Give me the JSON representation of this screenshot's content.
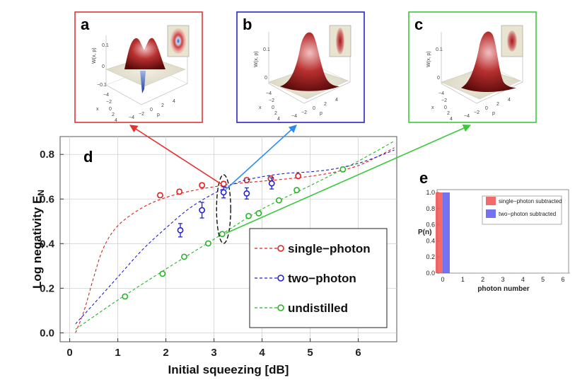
{
  "panels": {
    "a": {
      "label": "a",
      "zlabel": "W(x, p)",
      "xlabel": "x",
      "plabel": "p",
      "zticks": [
        "0.1",
        "0",
        "−0.1"
      ],
      "xticks": [
        "−4",
        "−2",
        "0",
        "2",
        "4"
      ],
      "pticks": [
        "−4",
        "−2",
        "0",
        "2",
        "4"
      ],
      "color": "#e63232"
    },
    "b": {
      "label": "b",
      "zlabel": "W(x, p)",
      "xlabel": "x",
      "plabel": "p",
      "zticks": [
        "0.1",
        "0"
      ],
      "xticks": [
        "−4",
        "−2",
        "0",
        "2",
        "4"
      ],
      "pticks": [
        "−4",
        "−2",
        "0",
        "2",
        "4"
      ],
      "color": "#2424c8"
    },
    "c": {
      "label": "c",
      "zlabel": "W(x, p)",
      "xlabel": "x",
      "plabel": "p",
      "zticks": [
        "0.1",
        "0"
      ],
      "xticks": [
        "−4",
        "−2",
        "0",
        "2",
        "4"
      ],
      "pticks": [
        "−4",
        "−2",
        "0",
        "2",
        "4"
      ],
      "color": "#3cc83c"
    }
  },
  "chart_data": [
    {
      "type": "scatter",
      "panel": "d",
      "xlabel": "Initial squeezing [dB]",
      "ylabel": "Log negativity E",
      "ylabel_sub": "N",
      "xlim": [
        -0.2,
        6.8
      ],
      "ylim": [
        -0.04,
        0.88
      ],
      "xticks": [
        0,
        1,
        2,
        3,
        4,
        5,
        6
      ],
      "yticks": [
        0.0,
        0.2,
        0.4,
        0.6,
        0.8
      ],
      "grid": true,
      "legend_position": "lower-right",
      "series": [
        {
          "name": "single−photon",
          "color": "#e02020",
          "points": [
            [
              1.88,
              0.617
            ],
            [
              2.28,
              0.633
            ],
            [
              2.75,
              0.662
            ],
            [
              3.2,
              0.668
            ],
            [
              3.68,
              0.685
            ],
            [
              4.18,
              0.692
            ],
            [
              4.75,
              0.703
            ]
          ],
          "errors": [
            0.01,
            0.01,
            0.01,
            0.01,
            0.01,
            0.01,
            0.01
          ],
          "theory": [
            [
              0.12,
              0.0
            ],
            [
              0.3,
              0.1
            ],
            [
              0.5,
              0.25
            ],
            [
              0.7,
              0.38
            ],
            [
              1.0,
              0.48
            ],
            [
              1.5,
              0.56
            ],
            [
              2.0,
              0.607
            ],
            [
              2.5,
              0.635
            ],
            [
              3.0,
              0.655
            ],
            [
              3.5,
              0.67
            ],
            [
              4.0,
              0.68
            ],
            [
              4.5,
              0.69
            ],
            [
              5.0,
              0.702
            ],
            [
              5.5,
              0.72
            ],
            [
              6.0,
              0.75
            ],
            [
              6.4,
              0.79
            ],
            [
              6.75,
              0.83
            ]
          ]
        },
        {
          "name": "two−photon",
          "color": "#2020d0",
          "points": [
            [
              2.3,
              0.46
            ],
            [
              2.75,
              0.55
            ],
            [
              3.2,
              0.63
            ],
            [
              3.68,
              0.625
            ],
            [
              4.2,
              0.67
            ]
          ],
          "errors": [
            0.03,
            0.035,
            0.025,
            0.025,
            0.025
          ],
          "theory": [
            [
              0.12,
              0.04
            ],
            [
              0.5,
              0.13
            ],
            [
              1.0,
              0.25
            ],
            [
              1.5,
              0.37
            ],
            [
              2.0,
              0.47
            ],
            [
              2.5,
              0.56
            ],
            [
              3.0,
              0.625
            ],
            [
              3.5,
              0.675
            ],
            [
              4.0,
              0.7
            ],
            [
              4.5,
              0.715
            ],
            [
              5.0,
              0.722
            ],
            [
              5.5,
              0.735
            ],
            [
              6.0,
              0.76
            ],
            [
              6.4,
              0.79
            ],
            [
              6.75,
              0.82
            ]
          ]
        },
        {
          "name": "undistilled",
          "color": "#28b428",
          "points": [
            [
              1.15,
              0.163
            ],
            [
              1.93,
              0.265
            ],
            [
              2.38,
              0.341
            ],
            [
              2.88,
              0.401
            ],
            [
              3.17,
              0.443
            ],
            [
              3.72,
              0.524
            ],
            [
              3.93,
              0.536
            ],
            [
              4.35,
              0.594
            ],
            [
              4.72,
              0.64
            ],
            [
              5.68,
              0.733
            ]
          ],
          "errors": [
            0.008,
            0.008,
            0.008,
            0.008,
            0.008,
            0.008,
            0.008,
            0.008,
            0.008,
            0.01
          ],
          "theory": [
            [
              0.12,
              0.016
            ],
            [
              1.0,
              0.147
            ],
            [
              2.0,
              0.286
            ],
            [
              3.0,
              0.42
            ],
            [
              4.0,
              0.555
            ],
            [
              5.0,
              0.66
            ],
            [
              6.0,
              0.77
            ],
            [
              6.75,
              0.86
            ]
          ]
        }
      ],
      "legend": [
        {
          "label": "single−photon",
          "color": "#e02020"
        },
        {
          "label": "two−photon",
          "color": "#2020d0"
        },
        {
          "label": "undistilled",
          "color": "#28b428"
        }
      ]
    },
    {
      "type": "bar",
      "panel": "e",
      "xlabel": "photon number",
      "ylabel": "P(n)",
      "categories": [
        "0",
        "1",
        "2",
        "3",
        "4",
        "5",
        "6"
      ],
      "ylim": [
        0,
        1.0
      ],
      "yticks": [
        "0.0",
        "0.2",
        "0.4",
        "0.6",
        "0.8",
        "1.0"
      ],
      "series": [
        {
          "name": "single−photon subtracted",
          "color": "#f05050",
          "values": [
            1.0,
            0,
            0,
            0,
            0,
            0,
            0
          ]
        },
        {
          "name": "two−photon subtracted",
          "color": "#5a5af0",
          "values": [
            1.0,
            0,
            0,
            0,
            0,
            0,
            0
          ]
        }
      ]
    }
  ],
  "labels": {
    "d": "d",
    "e": "e"
  }
}
